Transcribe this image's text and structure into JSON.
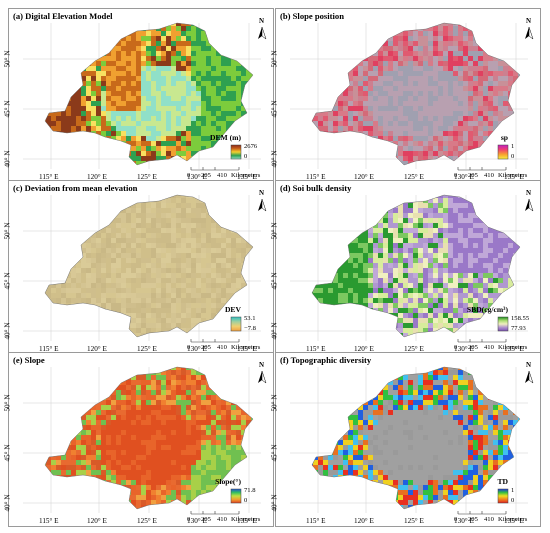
{
  "panels": [
    {
      "id": "a",
      "title": "(a) Digital Elevation Model",
      "legend_title": "DEM (m)",
      "legend_max": "2676",
      "legend_min": "0",
      "colors": [
        "#8b3a1a",
        "#c86a1a",
        "#f0a030",
        "#f8e060",
        "#7ccc3c",
        "#2ea050",
        "#c8e890",
        "#90e0c8"
      ],
      "swatch_gradient": [
        "#8b2a1a",
        "#c8601a",
        "#f5d030",
        "#2ea050",
        "#90e0c8"
      ]
    },
    {
      "id": "b",
      "title": "(b) Slope position",
      "legend_title": "sp",
      "legend_max": "1",
      "legend_min": "0",
      "colors": [
        "#d46a78",
        "#c89098",
        "#e04060",
        "#b8a0b0",
        "#d87a88",
        "#a0a0b0",
        "#e05a70",
        "#cc8090"
      ],
      "swatch_gradient": [
        "#c020c0",
        "#f04070",
        "#f8a030",
        "#f8f040"
      ]
    },
    {
      "id": "c",
      "title": "(c) Deviation from mean elevation",
      "legend_title": "DEV",
      "legend_max": "53.1",
      "legend_min": "−7.8",
      "colors": [
        "#d8c896",
        "#d0bf8a",
        "#ccbb88",
        "#d6c690",
        "#c9b886",
        "#dacb98",
        "#cfbe8c",
        "#d4c492"
      ],
      "swatch_gradient": [
        "#30c0c0",
        "#a0d0a0",
        "#f0d070",
        "#f0a040"
      ]
    },
    {
      "id": "d",
      "title": "(d) Soi bulk density",
      "legend_title": "SBD(cg/cm³)",
      "legend_max": "158.55",
      "legend_min": "77.93",
      "colors": [
        "#2a9a30",
        "#7cc860",
        "#d8ec9c",
        "#f0f0c0",
        "#c0a8d8",
        "#9a78c8",
        "#e8e0b0",
        "#b098d0"
      ],
      "swatch_gradient": [
        "#1a8a20",
        "#a8dc70",
        "#f0f0c0",
        "#b090d0",
        "#7a50b0"
      ]
    },
    {
      "id": "e",
      "title": "(e) Slope",
      "legend_title": "Slope(°)",
      "legend_max": "71.8",
      "legend_min": "0",
      "colors": [
        "#e8642a",
        "#f08030",
        "#e05020",
        "#f0a040",
        "#70c050",
        "#e86a30",
        "#d85a28",
        "#a8d048"
      ],
      "swatch_gradient": [
        "#2050d0",
        "#30c060",
        "#c0e040",
        "#f0a030",
        "#e04020"
      ]
    },
    {
      "id": "f",
      "title": "(f) Topographic diversity",
      "legend_title": "TD",
      "legend_max": "1",
      "legend_min": "0",
      "colors": [
        "#a0a0a0",
        "#30c040",
        "#2060e0",
        "#e83020",
        "#f0d020",
        "#9a9a9a",
        "#40c0f0",
        "#e87020"
      ],
      "swatch_gradient": [
        "#2030e0",
        "#30c040",
        "#f0e020",
        "#f08020",
        "#e02020"
      ]
    }
  ],
  "lon_ticks": [
    "115° E",
    "120° E",
    "125° E",
    "130° E",
    "135° E"
  ],
  "lat_ticks": [
    "50° N",
    "45° N",
    "40° N"
  ],
  "north_label": "N",
  "scale_numbers": [
    "0",
    "205",
    "410"
  ],
  "scale_unit": "Kilometers"
}
